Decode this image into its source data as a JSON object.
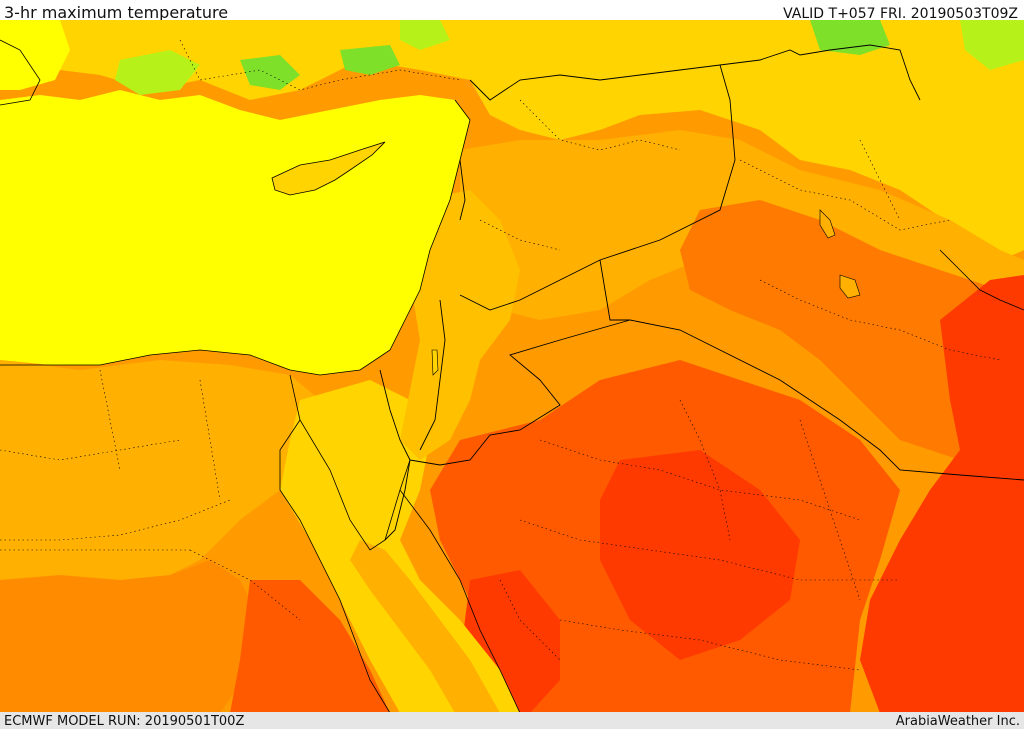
{
  "header": {
    "title": "3-hr maximum temperature",
    "valid": "VALID T+057 FRI. 20190503T09Z"
  },
  "footer": {
    "model_run": "ECMWF MODEL RUN: 20190501T00Z",
    "credit": "ArabiaWeather Inc."
  },
  "colors": {
    "green": "#7fe02a",
    "light_green": "#b6f21a",
    "yellow": "#ffff00",
    "gold": "#ffd400",
    "amber": "#ffb000",
    "orange": "#ff8c00",
    "dark_orange": "#ff6a00",
    "red_orange": "#ff4400",
    "red": "#ff2a00",
    "border": "#000000"
  }
}
